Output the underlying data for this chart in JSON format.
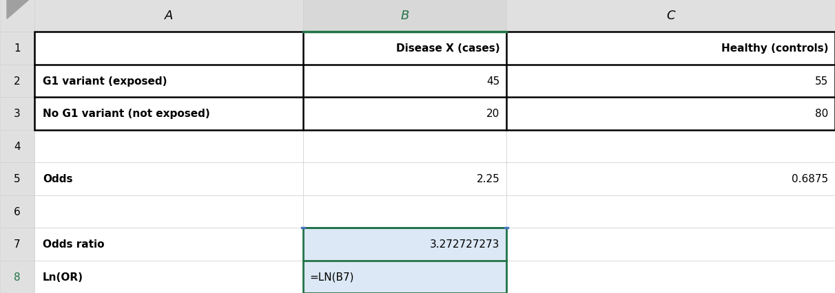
{
  "col_header_labels": [
    "A",
    "B",
    "C"
  ],
  "row_header_labels": [
    "1",
    "2",
    "3",
    "4",
    "5",
    "6",
    "7",
    "8"
  ],
  "header_bg": "#e0e0e0",
  "selected_col_header_bg": "#d8d8d8",
  "selected_cell_bg": "#dce8f5",
  "cell_bg": "#ffffff",
  "header_text_color_normal": "#000000",
  "header_text_color_selected": "#217346",
  "normal_text_color": "#000000",
  "grid_color": "#d0d0d0",
  "thick_border_color": "#000000",
  "selected_border_top_color": "#4472c4",
  "selected_border_color": "#217346",
  "triangle_color": "#a0a0a0",
  "cells": [
    [
      "",
      "Disease X (cases)",
      "Healthy (controls)"
    ],
    [
      "G1 variant (exposed)",
      "45",
      "55"
    ],
    [
      "No G1 variant (not exposed)",
      "20",
      "80"
    ],
    [
      "",
      "",
      ""
    ],
    [
      "Odds",
      "2.25",
      "0.6875"
    ],
    [
      "",
      "",
      ""
    ],
    [
      "Odds ratio",
      "3.272727273",
      ""
    ],
    [
      "Ln(OR)",
      "=LN(B7)",
      ""
    ]
  ],
  "fig_width": 12.12,
  "fig_height": 4.27,
  "dpi": 100
}
